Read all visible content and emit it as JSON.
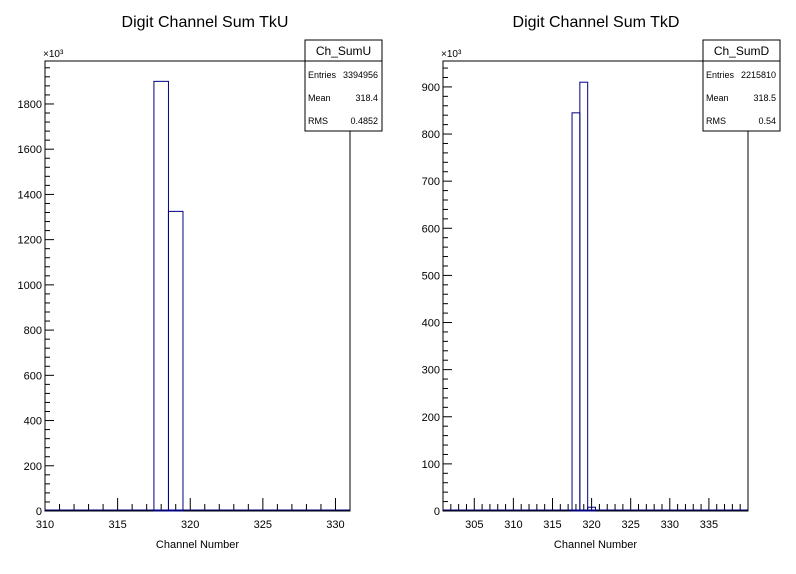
{
  "chart_data": [
    {
      "type": "histogram",
      "title": "Digit Channel Sum TkU",
      "xlabel": "Channel Number",
      "ylabel": "",
      "exponent_label": "×10³",
      "xlim": [
        310,
        331
      ],
      "ylim": [
        0,
        1990
      ],
      "x_ticks": [
        310,
        315,
        320,
        325,
        330
      ],
      "y_ticks": [
        0,
        200,
        400,
        600,
        800,
        1000,
        1200,
        1400,
        1600,
        1800
      ],
      "bins": [
        {
          "x0": 317.5,
          "x1": 318.5,
          "value": 1900
        },
        {
          "x0": 318.5,
          "x1": 319.5,
          "value": 1325
        }
      ],
      "stats": {
        "name": "Ch_SumU",
        "rows": [
          {
            "label": "Entries",
            "value": "3394956"
          },
          {
            "label": "Mean",
            "value": "318.4"
          },
          {
            "label": "RMS",
            "value": "0.4852"
          }
        ]
      }
    },
    {
      "type": "histogram",
      "title": "Digit Channel Sum TkD",
      "xlabel": "Channel Number",
      "ylabel": "",
      "exponent_label": "×10³",
      "xlim": [
        301,
        340
      ],
      "ylim": [
        0,
        955
      ],
      "x_ticks": [
        305,
        310,
        315,
        320,
        325,
        330,
        335
      ],
      "y_ticks": [
        0,
        100,
        200,
        300,
        400,
        500,
        600,
        700,
        800,
        900
      ],
      "bins": [
        {
          "x0": 317.5,
          "x1": 318.5,
          "value": 845
        },
        {
          "x0": 318.5,
          "x1": 319.5,
          "value": 910
        },
        {
          "x0": 319.5,
          "x1": 320.5,
          "value": 8
        }
      ],
      "stats": {
        "name": "Ch_SumD",
        "rows": [
          {
            "label": "Entries",
            "value": "2215810"
          },
          {
            "label": "Mean",
            "value": "318.5"
          },
          {
            "label": "RMS",
            "value": "0.54"
          }
        ]
      }
    }
  ]
}
